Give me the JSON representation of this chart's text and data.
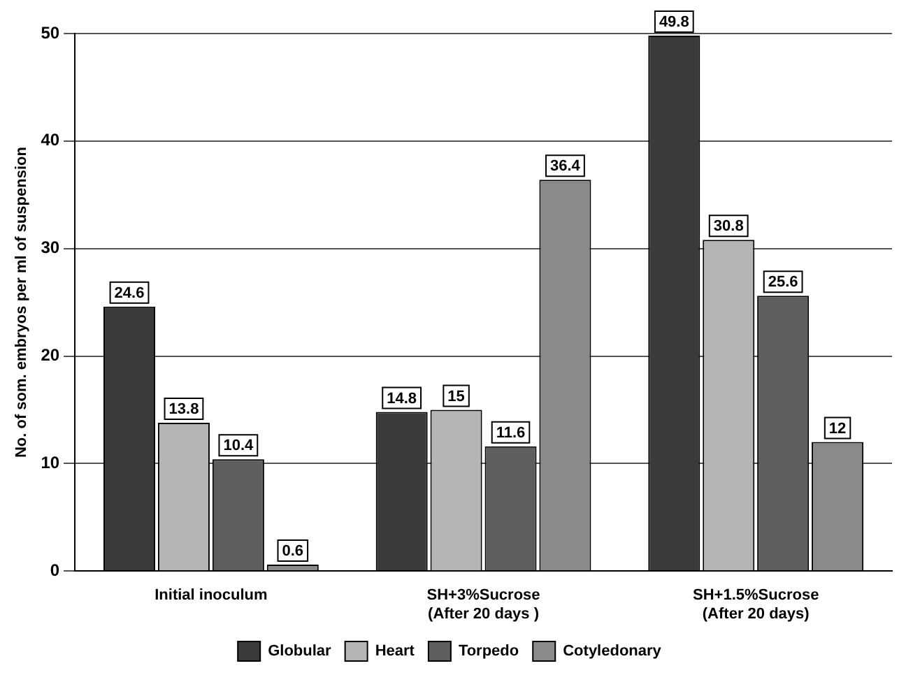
{
  "chart_data": {
    "type": "bar",
    "ylabel": "No. of som. embryos per ml of suspension",
    "categories": [
      "Initial inoculum",
      "SH+3%Sucrose\n(After 20 days )",
      "SH+1.5%Sucrose\n(After 20 days)"
    ],
    "series": [
      {
        "name": "Globular",
        "color": "#3a3a3a",
        "values": [
          24.6,
          14.8,
          49.8
        ]
      },
      {
        "name": "Heart",
        "color": "#b5b5b5",
        "values": [
          13.8,
          15,
          30.8
        ]
      },
      {
        "name": "Torpedo",
        "color": "#5e5e5e",
        "values": [
          10.4,
          11.6,
          25.6
        ]
      },
      {
        "name": "Cotyledonary",
        "color": "#8a8a8a",
        "values": [
          0.6,
          36.4,
          12
        ]
      }
    ],
    "ylim": [
      0,
      50
    ],
    "yticks": [
      0,
      10,
      20,
      30,
      40,
      50
    ],
    "grid": "y",
    "legend": "bottom",
    "data_labels": true
  }
}
